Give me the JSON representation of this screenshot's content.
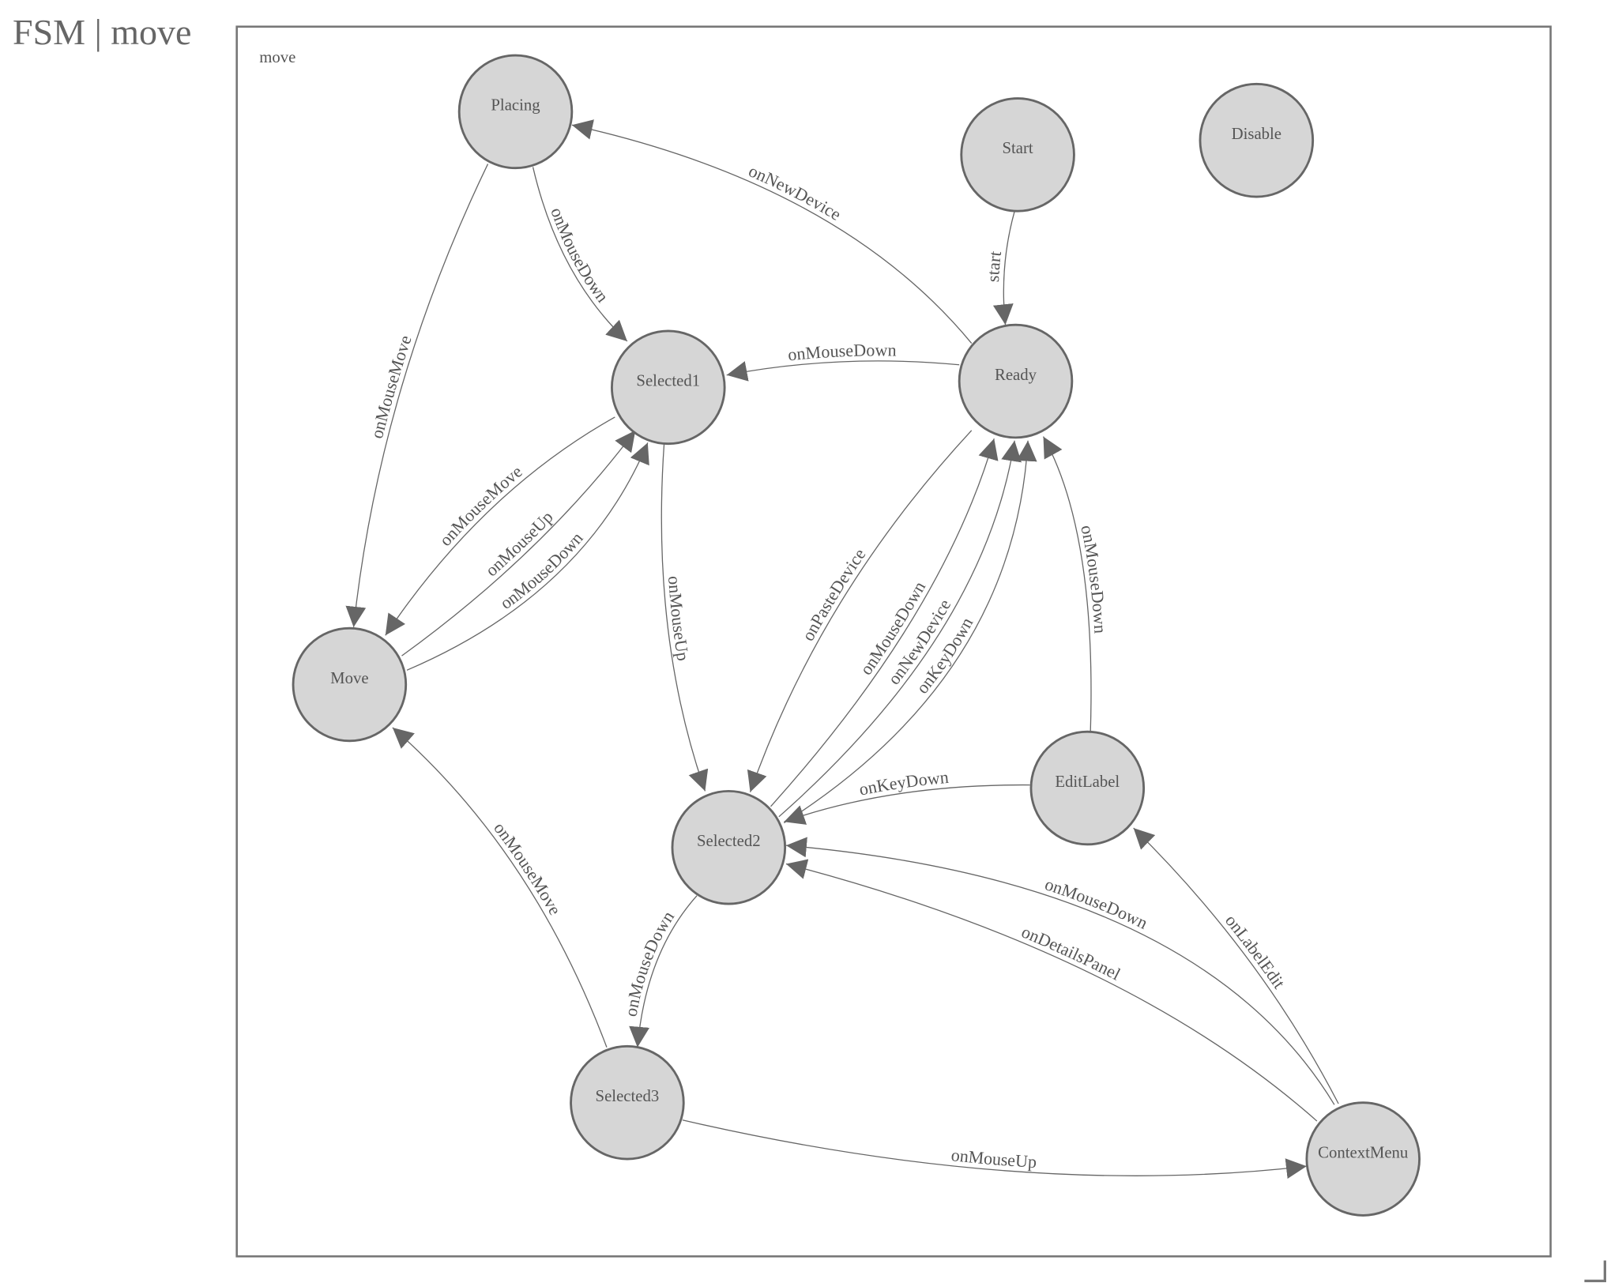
{
  "title": "FSM | move",
  "diagram": {
    "frame_label": "move",
    "colors": {
      "node_fill": "#d6d6d6",
      "stroke": "#666666",
      "text": "#555555"
    },
    "nodes": [
      {
        "id": "Placing",
        "label": "Placing"
      },
      {
        "id": "Start",
        "label": "Start"
      },
      {
        "id": "Disable",
        "label": "Disable"
      },
      {
        "id": "Selected1",
        "label": "Selected1"
      },
      {
        "id": "Ready",
        "label": "Ready"
      },
      {
        "id": "Move",
        "label": "Move"
      },
      {
        "id": "EditLabel",
        "label": "EditLabel"
      },
      {
        "id": "Selected2",
        "label": "Selected2"
      },
      {
        "id": "Selected3",
        "label": "Selected3"
      },
      {
        "id": "ContextMenu",
        "label": "ContextMenu"
      }
    ],
    "edges": [
      {
        "from": "Start",
        "to": "Ready",
        "label": "start"
      },
      {
        "from": "Ready",
        "to": "Placing",
        "label": "onNewDevice"
      },
      {
        "from": "Placing",
        "to": "Selected1",
        "label": "onMouseDown"
      },
      {
        "from": "Placing",
        "to": "Move",
        "label": "onMouseMove"
      },
      {
        "from": "Ready",
        "to": "Selected1",
        "label": "onMouseDown"
      },
      {
        "from": "Selected1",
        "to": "Move",
        "label": "onMouseMove"
      },
      {
        "from": "Move",
        "to": "Selected1",
        "label": "onMouseUp"
      },
      {
        "from": "Move",
        "to": "Selected1",
        "label": "onMouseDown"
      },
      {
        "from": "Selected1",
        "to": "Selected2",
        "label": "onMouseUp"
      },
      {
        "from": "Ready",
        "to": "Selected2",
        "label": "onPasteDevice"
      },
      {
        "from": "Selected2",
        "to": "Ready",
        "label": "onMouseDown"
      },
      {
        "from": "Selected2",
        "to": "Ready",
        "label": "onNewDevice"
      },
      {
        "from": "Selected2",
        "to": "Ready",
        "label": "onKeyDown"
      },
      {
        "from": "EditLabel",
        "to": "Ready",
        "label": "onMouseDown"
      },
      {
        "from": "EditLabel",
        "to": "Selected2",
        "label": "onKeyDown"
      },
      {
        "from": "ContextMenu",
        "to": "Selected2",
        "label": "onMouseDown"
      },
      {
        "from": "ContextMenu",
        "to": "Selected2",
        "label": "onDetailsPanel"
      },
      {
        "from": "ContextMenu",
        "to": "EditLabel",
        "label": "onLabelEdit"
      },
      {
        "from": "Selected2",
        "to": "Selected3",
        "label": "onMouseDown"
      },
      {
        "from": "Selected3",
        "to": "Move",
        "label": "onMouseMove"
      },
      {
        "from": "Selected3",
        "to": "ContextMenu",
        "label": "onMouseUp"
      }
    ]
  }
}
